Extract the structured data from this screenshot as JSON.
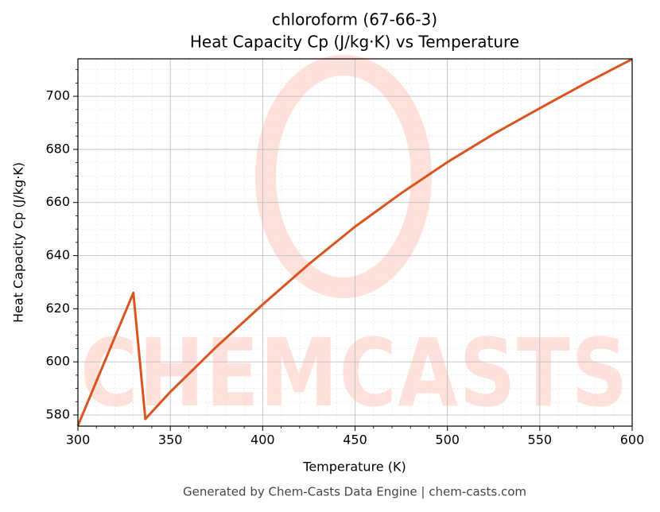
{
  "chart_data": {
    "type": "line",
    "title": "chloroform (67-66-3)",
    "subtitle": "Heat Capacity Cp (J/kg·K) vs Temperature",
    "xlabel": "Temperature (K)",
    "ylabel": "Heat Capacity Cp (J/kg·K)",
    "footer": "Generated by Chem-Casts Data Engine | chem-casts.com",
    "watermark": "CHEMCASTS",
    "x": [
      300,
      330,
      336.5,
      350,
      375,
      400,
      425,
      450,
      475,
      500,
      525,
      550,
      575,
      600
    ],
    "series": [
      {
        "name": "Cp",
        "color": "#d9541e",
        "values": [
          576,
          626,
          578.5,
          588.7,
          605.7,
          621.6,
          636.8,
          650.9,
          663.5,
          675.2,
          685.8,
          695.5,
          705,
          714
        ]
      }
    ],
    "xlim": [
      300,
      600
    ],
    "xticks": [
      300,
      350,
      400,
      450,
      500,
      550,
      600
    ],
    "ylim": [
      575.8,
      714.1
    ],
    "yticks": [
      580,
      600,
      620,
      640,
      660,
      680,
      700
    ],
    "grid": true
  }
}
